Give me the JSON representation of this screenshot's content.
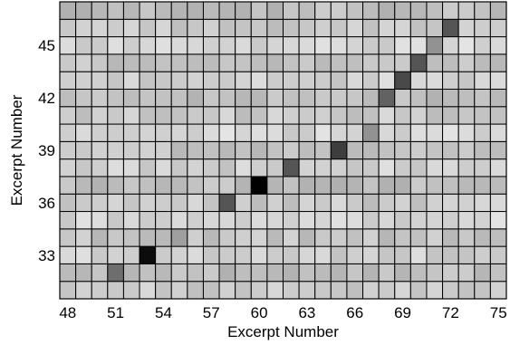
{
  "chart_data": {
    "type": "heatmap",
    "title": "",
    "xlabel": "Excerpt Number",
    "ylabel": "Excerpt Number",
    "x_range": [
      48,
      75
    ],
    "y_range": [
      31,
      47
    ],
    "x_ticks": [
      48,
      51,
      54,
      57,
      60,
      63,
      66,
      69,
      72,
      75
    ],
    "y_ticks": [
      33,
      36,
      39,
      42,
      45
    ],
    "grid": true,
    "colormap": "gray (dark = high similarity)",
    "highlights": [
      {
        "x": 51,
        "y": 32,
        "value": 0.55
      },
      {
        "x": 53,
        "y": 33,
        "value": 0.95
      },
      {
        "x": 55,
        "y": 34,
        "value": 0.35
      },
      {
        "x": 58,
        "y": 36,
        "value": 0.65
      },
      {
        "x": 60,
        "y": 37,
        "value": 1.0
      },
      {
        "x": 62,
        "y": 38,
        "value": 0.65
      },
      {
        "x": 65,
        "y": 39,
        "value": 0.75
      },
      {
        "x": 67,
        "y": 40,
        "value": 0.4
      },
      {
        "x": 68,
        "y": 42,
        "value": 0.6
      },
      {
        "x": 69,
        "y": 43,
        "value": 0.7
      },
      {
        "x": 70,
        "y": 44,
        "value": 0.65
      },
      {
        "x": 71,
        "y": 45,
        "value": 0.4
      },
      {
        "x": 72,
        "y": 46,
        "value": 0.65
      }
    ],
    "background_level": 0.2,
    "colors": {
      "low": "#f4f4f4",
      "high": "#000000",
      "stroke": "#000000"
    }
  }
}
